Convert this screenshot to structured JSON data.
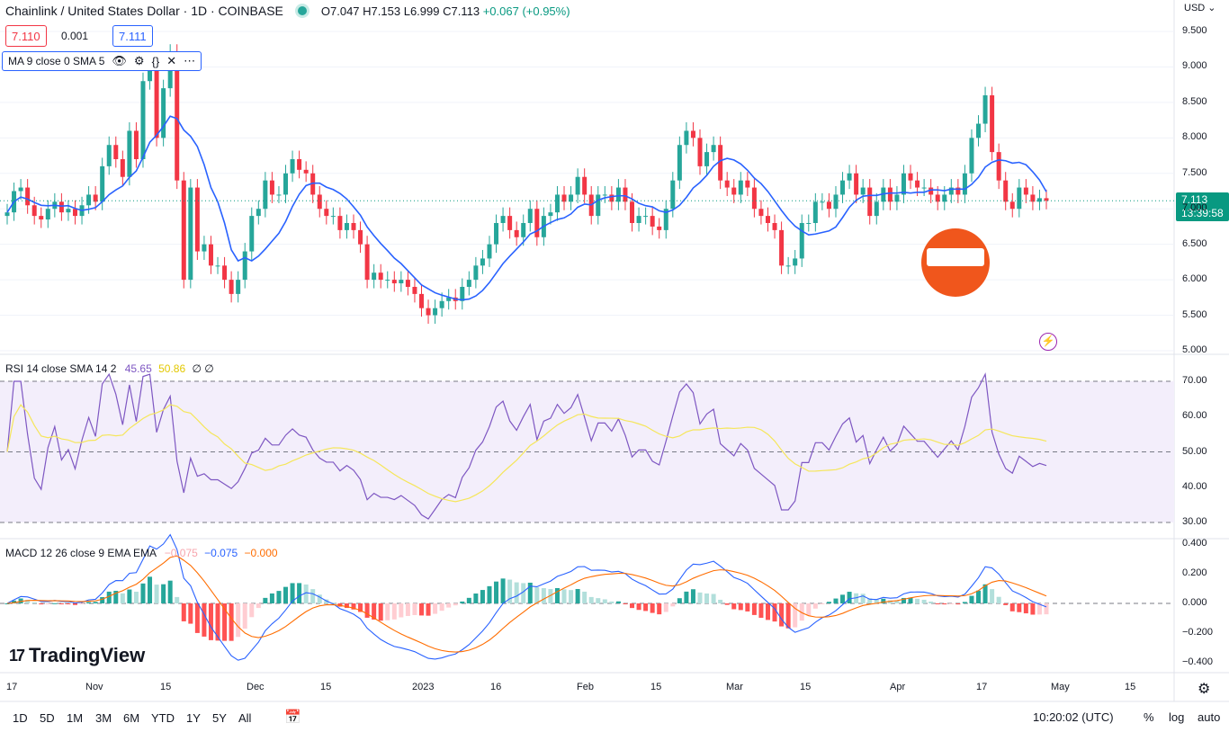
{
  "header": {
    "symbol_title": "Chainlink / United States Dollar · 1D · COINBASE",
    "open": "O7.047",
    "high": "H7.153",
    "low": "L6.999",
    "close": "C7.113",
    "change": "+0.067 (+0.95%)"
  },
  "quote": {
    "bid": "7.110",
    "spread": "0.001",
    "ask": "7.111"
  },
  "ma_legend": "MA 9 close 0 SMA 5",
  "currency": "USD",
  "currency_caret": "⌄",
  "price_axis": [
    "9.500",
    "9.000",
    "8.500",
    "8.000",
    "7.500",
    "7.000",
    "6.500",
    "6.000",
    "5.500",
    "5.000"
  ],
  "last_price": "7.113",
  "countdown": "13:39:58",
  "rsi": {
    "legend": "RSI 14 close SMA 14 2",
    "v1": "45.65",
    "v2": "50.86",
    "v3": "∅ ∅",
    "axis": [
      "70.00",
      "60.00",
      "50.00",
      "40.00",
      "30.00"
    ]
  },
  "macd": {
    "legend": "MACD 12 26 close 9 EMA EMA",
    "hist": "−0.075",
    "macd": "−0.075",
    "signal": "−0.000",
    "axis": [
      "0.400",
      "0.200",
      "0.000",
      "−0.200",
      "−0.400"
    ]
  },
  "time_axis": [
    "17",
    "Nov",
    "15",
    "Dec",
    "15",
    "2023",
    "16",
    "Feb",
    "15",
    "Mar",
    "15",
    "Apr",
    "17",
    "May",
    "15"
  ],
  "toolbar": {
    "ranges": [
      "1D",
      "5D",
      "1M",
      "3M",
      "6M",
      "YTD",
      "1Y",
      "5Y",
      "All"
    ],
    "clock": "10:20:02 (UTC)",
    "percent": "%",
    "log": "log",
    "auto": "auto"
  },
  "brand": "TradingView",
  "colors": {
    "up": "#26a69a",
    "down": "#f23645",
    "ma": "#2962ff",
    "rsi": "#7e57c2",
    "rsi_ma": "#f5e65a",
    "macd": "#2962ff",
    "signal": "#ff6d00",
    "brand_logo": "#f0561c"
  },
  "chart_data": {
    "type": "candlestick",
    "close_series": [
      6.95,
      7.25,
      7.3,
      7.05,
      6.9,
      6.85,
      7.0,
      7.1,
      6.95,
      7.0,
      6.9,
      7.05,
      7.2,
      7.1,
      7.6,
      7.9,
      7.7,
      7.45,
      8.1,
      7.7,
      8.8,
      9.1,
      8.0,
      8.7,
      9.2,
      7.4,
      6.0,
      7.3,
      6.4,
      6.5,
      6.2,
      6.2,
      6.0,
      5.8,
      6.0,
      6.4,
      6.9,
      7.0,
      7.4,
      7.2,
      7.2,
      7.5,
      7.7,
      7.55,
      7.5,
      7.2,
      7.0,
      6.9,
      6.9,
      6.7,
      6.8,
      6.7,
      6.5,
      6.0,
      6.1,
      6.0,
      6.0,
      5.95,
      6.0,
      5.9,
      5.8,
      5.6,
      5.5,
      5.6,
      5.7,
      5.75,
      5.7,
      5.9,
      6.0,
      6.2,
      6.3,
      6.5,
      6.8,
      6.9,
      6.7,
      6.6,
      6.8,
      7.0,
      6.6,
      6.9,
      6.95,
      7.2,
      7.1,
      7.2,
      7.45,
      7.2,
      6.9,
      7.2,
      7.2,
      7.1,
      7.3,
      7.1,
      6.8,
      6.9,
      6.9,
      6.75,
      6.7,
      7.0,
      7.4,
      7.9,
      8.1,
      8.0,
      7.6,
      7.8,
      7.9,
      7.4,
      7.3,
      7.2,
      7.4,
      7.3,
      7.0,
      6.9,
      6.8,
      6.7,
      6.2,
      6.2,
      6.3,
      6.8,
      6.8,
      7.1,
      7.1,
      7.0,
      7.2,
      7.4,
      7.5,
      7.2,
      7.3,
      6.9,
      7.1,
      7.3,
      7.1,
      7.2,
      7.5,
      7.4,
      7.3,
      7.3,
      7.2,
      7.1,
      7.2,
      7.3,
      7.2,
      7.5,
      8.0,
      8.2,
      8.6,
      7.8,
      7.4,
      7.1,
      7.0,
      7.3,
      7.2,
      7.1,
      7.15,
      7.113
    ],
    "ylim": [
      5.0,
      9.5
    ],
    "rsi_ylim": [
      30,
      70
    ],
    "macd_ylim": [
      -0.4,
      0.4
    ]
  }
}
